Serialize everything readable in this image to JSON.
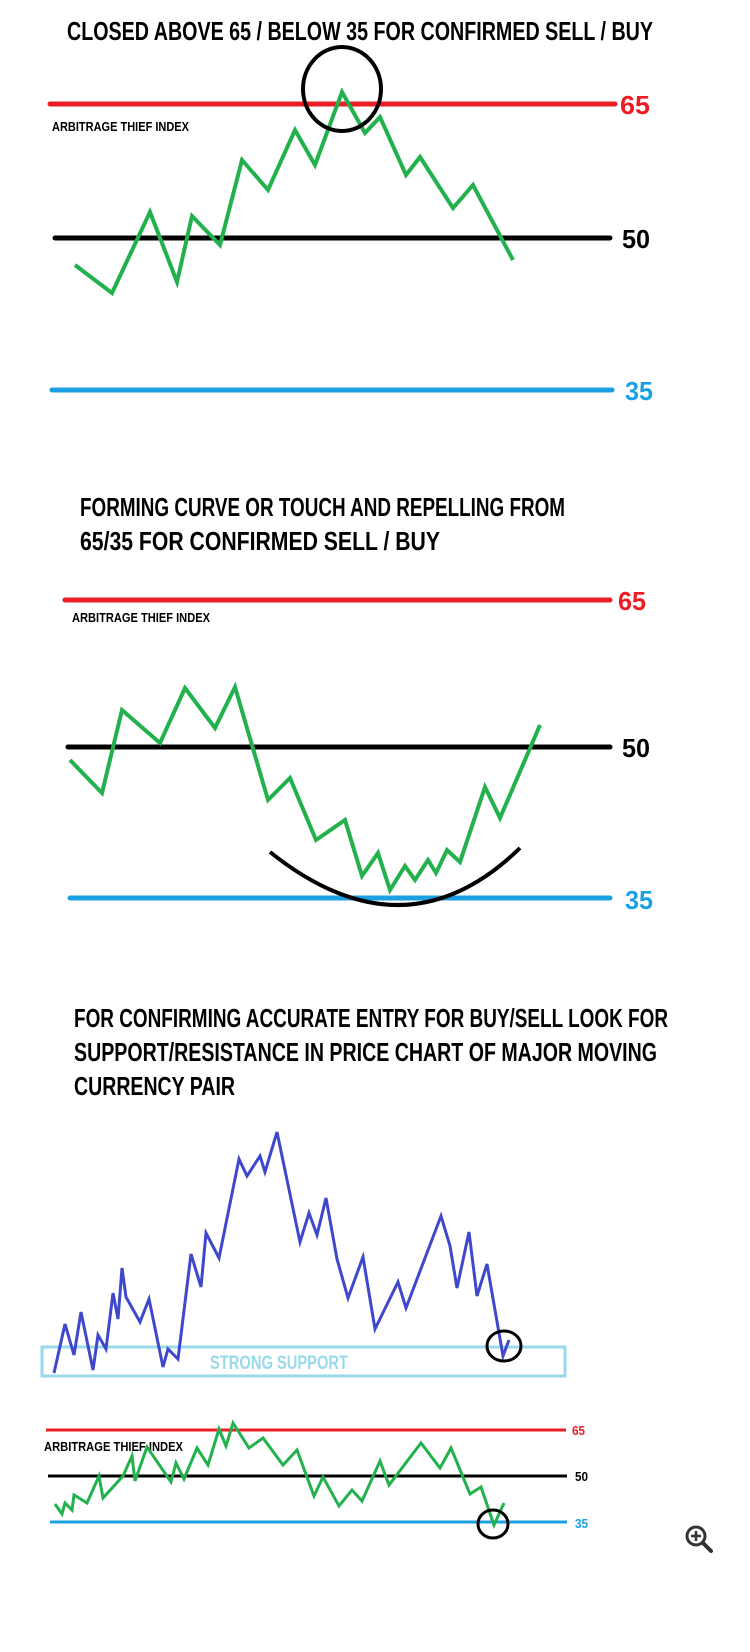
{
  "colors": {
    "overbought": "#ec1c24",
    "midline": "#000000",
    "oversold": "#1ba1e2",
    "index_line": "#22b14c",
    "price_line": "#3f48cc",
    "support_box": "#99d9ea"
  },
  "panel1": {
    "title": "CLOSED ABOVE 65 / BELOW 35 FOR CONFIRMED SELL / BUY",
    "index_label": "ARBITRAGE THIEF INDEX",
    "levels": {
      "high": "65",
      "mid": "50",
      "low": "35"
    }
  },
  "panel2": {
    "title_line1": "FORMING CURVE OR TOUCH AND REPELLING FROM",
    "title_line2": "65/35   FOR CONFIRMED SELL / BUY",
    "index_label": "ARBITRAGE THIEF INDEX",
    "levels": {
      "high": "65",
      "mid": "50",
      "low": "35"
    }
  },
  "panel3": {
    "title_line1": "FOR CONFIRMING ACCURATE ENTRY FOR BUY/SELL LOOK FOR",
    "title_line2": "SUPPORT/RESISTANCE IN PRICE CHART OF MAJOR MOVING",
    "title_line3": "CURRENCY PAIR",
    "support_label": "STRONG SUPPORT",
    "index_label": "ARBITRAGE THIEF INDEX",
    "levels": {
      "high": "65",
      "mid": "50",
      "low": "35"
    }
  },
  "viewer": {
    "zoom_icon": "zoom-in-icon"
  }
}
